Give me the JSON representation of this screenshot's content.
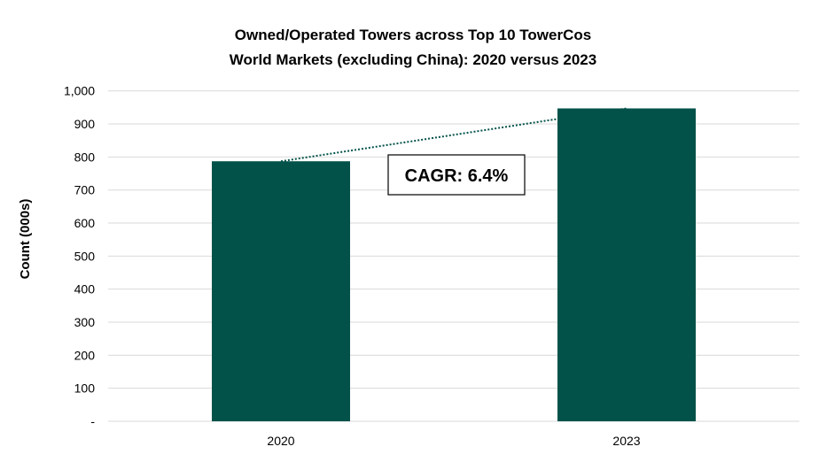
{
  "chart_data": {
    "type": "bar",
    "title": [
      "Owned/Operated Towers across Top 10 TowerCos",
      "World Markets (excluding China): 2020 versus 2023"
    ],
    "xlabel": "",
    "ylabel": "Count (000s)",
    "categories": [
      "2020",
      "2023"
    ],
    "values": [
      787,
      947
    ],
    "ylim": [
      0,
      1000
    ],
    "yticks": [
      0,
      100,
      200,
      300,
      400,
      500,
      600,
      700,
      800,
      900,
      1000
    ],
    "ytick_labels": [
      "-",
      "100",
      "200",
      "300",
      "400",
      "500",
      "600",
      "700",
      "800",
      "900",
      "1,000"
    ],
    "grid": true,
    "bar_color": "#02524A",
    "trendline": {
      "style": "dotted",
      "color": "#02524A",
      "from": "2020",
      "to": "2023"
    },
    "annotation": "CAGR: 6.4%",
    "legend": "none"
  }
}
